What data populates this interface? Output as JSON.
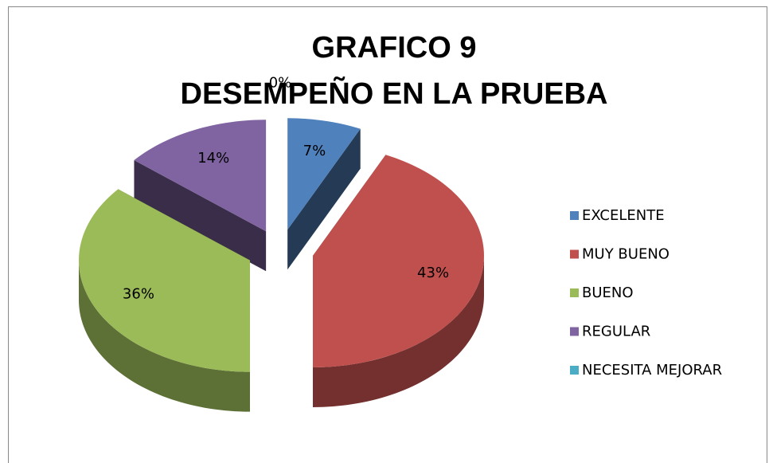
{
  "chart_data": {
    "type": "pie3d",
    "title": [
      "GRAFICO 9",
      "DESEMPEÑO EN LA PRUEBA"
    ],
    "categories": [
      "EXCELENTE",
      "MUY BUENO",
      "BUENO",
      "REGULAR",
      "NECESITA MEJORAR"
    ],
    "values": [
      7,
      43,
      36,
      14,
      0
    ],
    "value_labels": [
      "7%",
      "43%",
      "36%",
      "14%",
      "0%"
    ],
    "colors": [
      "#4f81bd",
      "#c0504d",
      "#9bbb59",
      "#8064a2",
      "#4bacc6"
    ],
    "legend": "right"
  }
}
